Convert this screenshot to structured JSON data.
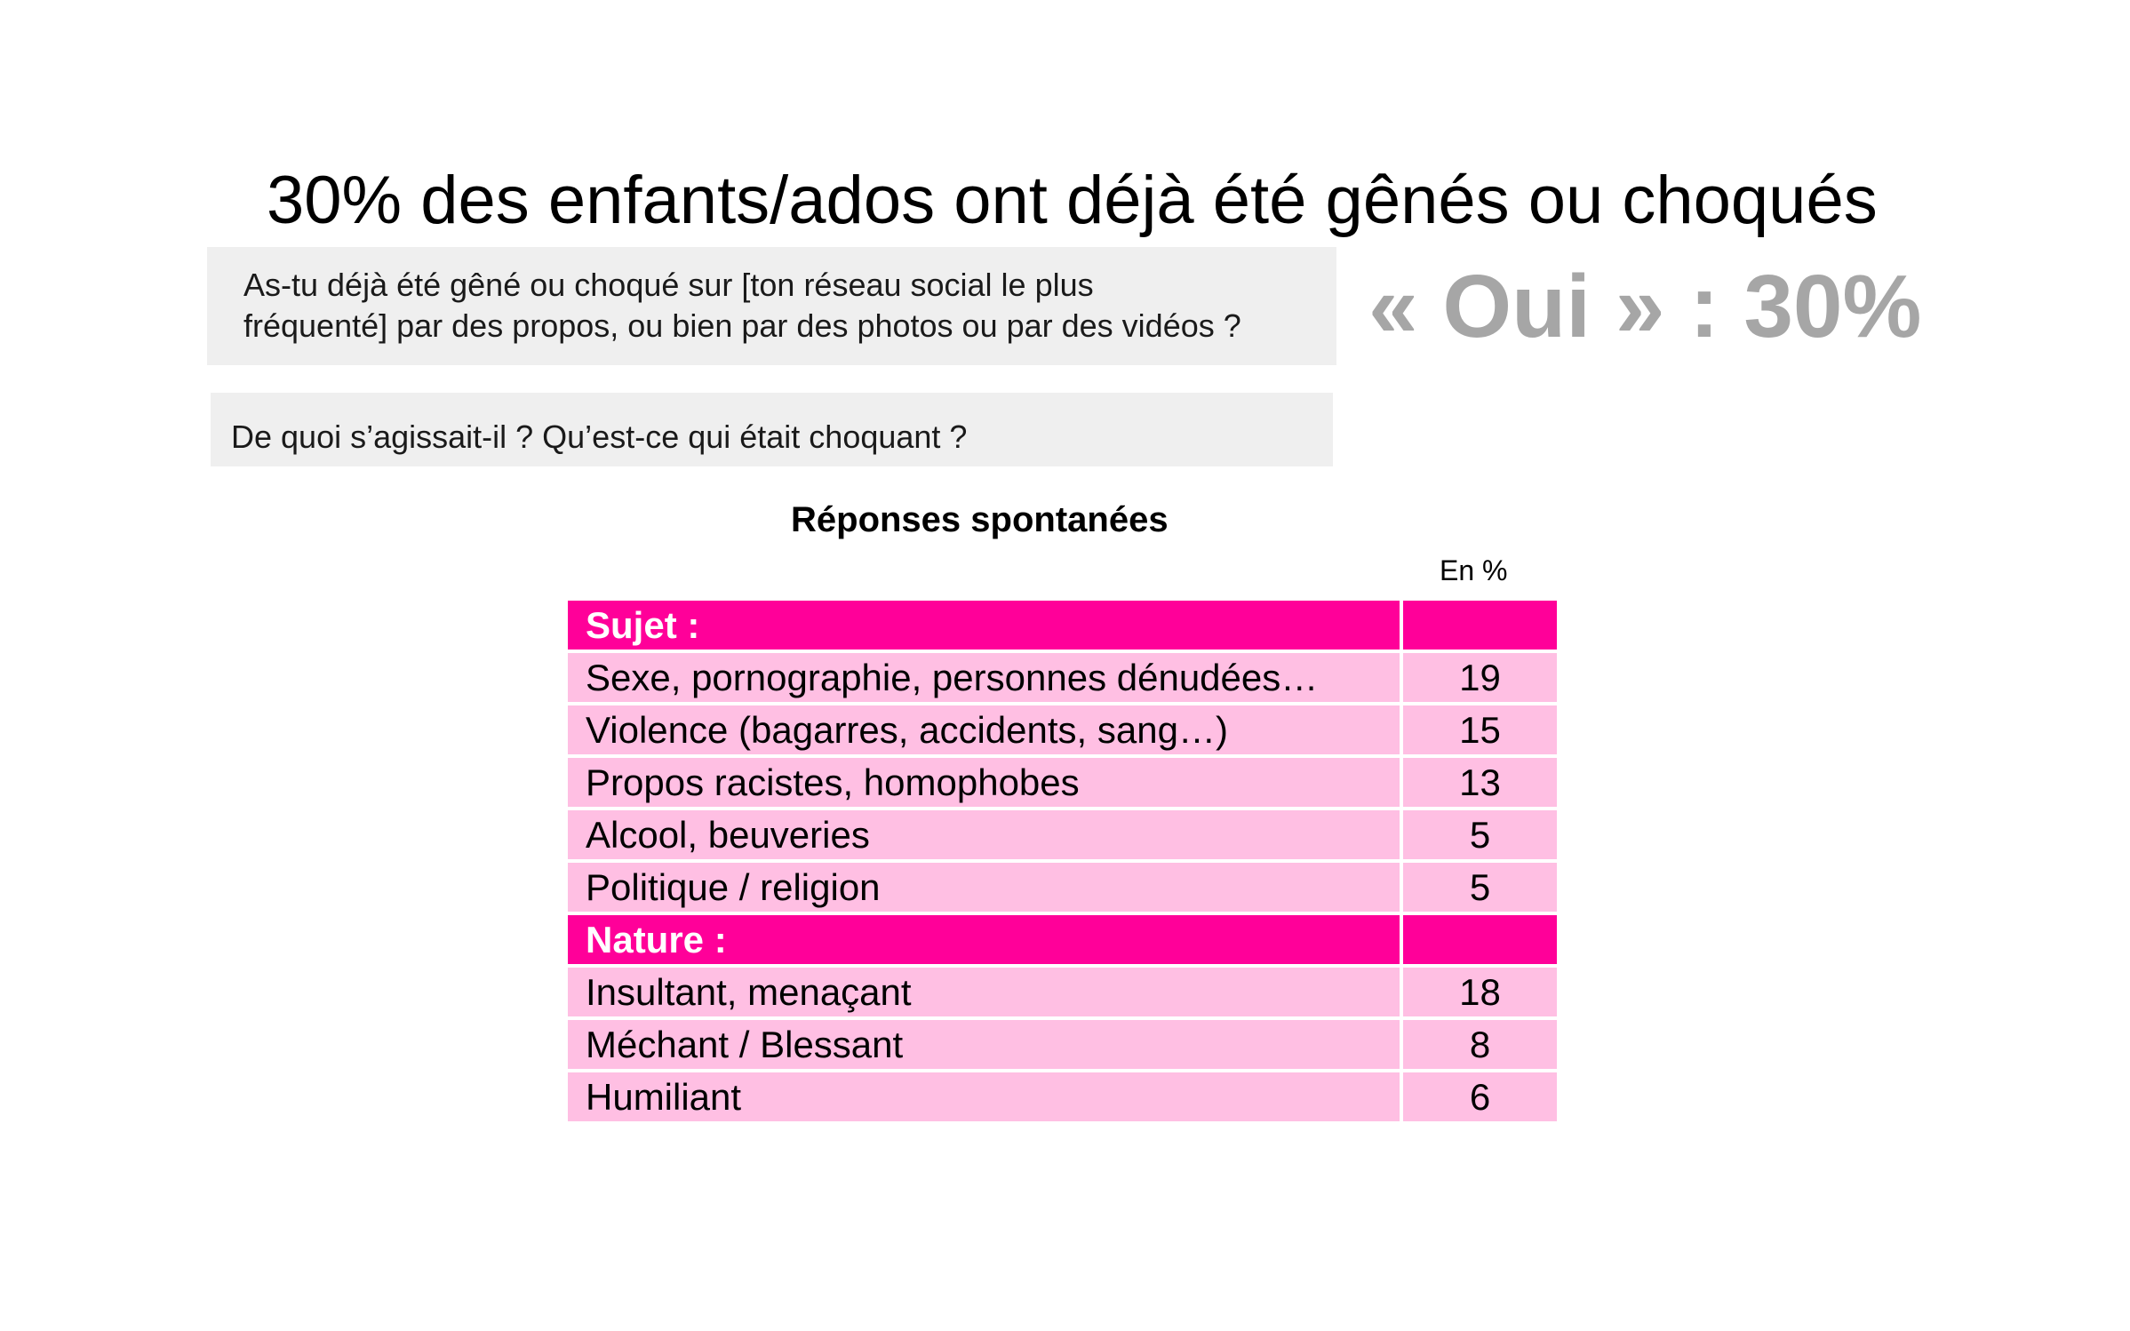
{
  "title": "30% des enfants/ados ont déjà été gênés ou choqués",
  "question": {
    "line1": "As-tu déjà été gêné ou choqué sur [ton réseau social le plus",
    "line2": "fréquenté] par des propos, ou bien par des photos ou par des vidéos ?"
  },
  "oui_result": "« Oui » : 30%",
  "followup_question": "De quoi s’agissait-il ? Qu’est-ce qui était choquant ?",
  "colors": {
    "section_header": "#ff0099",
    "row_background": "#ffbfe3",
    "highlight_grey": "#a6a6a6",
    "question_box": "#efefef"
  },
  "chart_data": {
    "type": "table",
    "title": "Réponses spontanées",
    "unit": "En %",
    "sections": [
      {
        "name": "Sujet :",
        "rows": [
          {
            "label": "Sexe, pornographie, personnes dénudées…",
            "value": "19"
          },
          {
            "label": "Violence (bagarres, accidents, sang…)",
            "value": "15"
          },
          {
            "label": "Propos racistes, homophobes",
            "value": "13"
          },
          {
            "label": "Alcool, beuveries",
            "value": "5"
          },
          {
            "label": "Politique / religion",
            "value": "5"
          }
        ]
      },
      {
        "name": "Nature :",
        "rows": [
          {
            "label": "Insultant, menaçant",
            "value": "18"
          },
          {
            "label": "Méchant / Blessant",
            "value": "8"
          },
          {
            "label": "Humiliant",
            "value": "6"
          }
        ]
      }
    ]
  }
}
